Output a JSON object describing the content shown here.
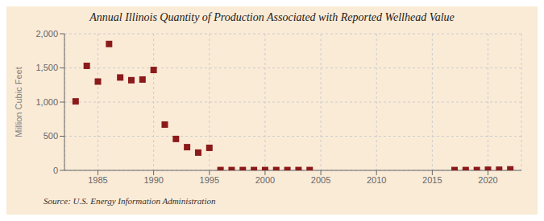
{
  "chart_data": {
    "type": "scatter",
    "title": "Annual Illinois Quantity of Production Associated with Reported Wellhead Value",
    "ylabel": "Million Cubic Feet",
    "annotation": "Source: U.S. Energy Information Administration",
    "x": [
      1983,
      1984,
      1985,
      1986,
      1987,
      1988,
      1989,
      1990,
      1991,
      1992,
      1993,
      1994,
      1995,
      1996,
      1997,
      1998,
      1999,
      2000,
      2001,
      2002,
      2003,
      2004,
      2017,
      2018,
      2019,
      2020,
      2021,
      2022
    ],
    "values": [
      1010,
      1530,
      1300,
      1850,
      1360,
      1320,
      1330,
      1470,
      670,
      460,
      340,
      260,
      330,
      5,
      5,
      5,
      5,
      5,
      5,
      5,
      5,
      5,
      5,
      5,
      5,
      10,
      10,
      15
    ],
    "color": "#8b1a1a",
    "marker": "square",
    "xlim": [
      1982,
      2023
    ],
    "xticks": [
      1985,
      1990,
      1995,
      2000,
      2005,
      2010,
      2015,
      2020
    ],
    "ylim": [
      0,
      2000
    ],
    "yticks": [
      0,
      500,
      {
        "value": 1000,
        "label": "1,000"
      },
      {
        "value": 1500,
        "label": "1,500"
      },
      {
        "value": 2000,
        "label": "2,000"
      }
    ],
    "grid": true
  }
}
